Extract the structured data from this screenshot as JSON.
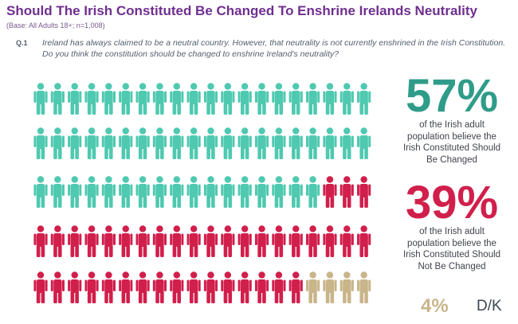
{
  "title": "Should The Irish Constituted Be Changed To Enshrine Irelands Neutrality",
  "base": "(Base: All Adults 18+; n=1,008)",
  "question": {
    "number": "Q.1",
    "text": "Ireland has always claimed to be a neutral country. However, that neutrality is not currently enshrined in the Irish Constitution. Do you think the constitution should be changed to enshrine Ireland's neutrality?"
  },
  "chart_data": {
    "type": "pictogram",
    "rows": 5,
    "columns": 20,
    "categories": [
      "Changed",
      "Not Be Changed",
      "D/K"
    ],
    "series": [
      {
        "name": "Changed",
        "value": 57,
        "color": "#4fc9b0"
      },
      {
        "name": "Not Be Changed",
        "value": 39,
        "color": "#d11f4c"
      },
      {
        "name": "D/K",
        "value": 4,
        "color": "#c9b58a"
      }
    ]
  },
  "stats": {
    "yes": {
      "percent": "57%",
      "color": "#2f9c89",
      "line1": "of the Irish adult",
      "line2": "population believe the",
      "line3": "Irish Constituted Should",
      "line4": "Be Changed"
    },
    "no": {
      "percent": "39%",
      "color": "#d11f4c",
      "line1": "of the Irish adult",
      "line2": "population believe the",
      "line3": "Irish Constituted Should",
      "line4": "Not Be Changed"
    },
    "dk": {
      "percent": "4%",
      "label": "D/K",
      "color": "#c9b58a"
    }
  },
  "icon": "person-icon"
}
